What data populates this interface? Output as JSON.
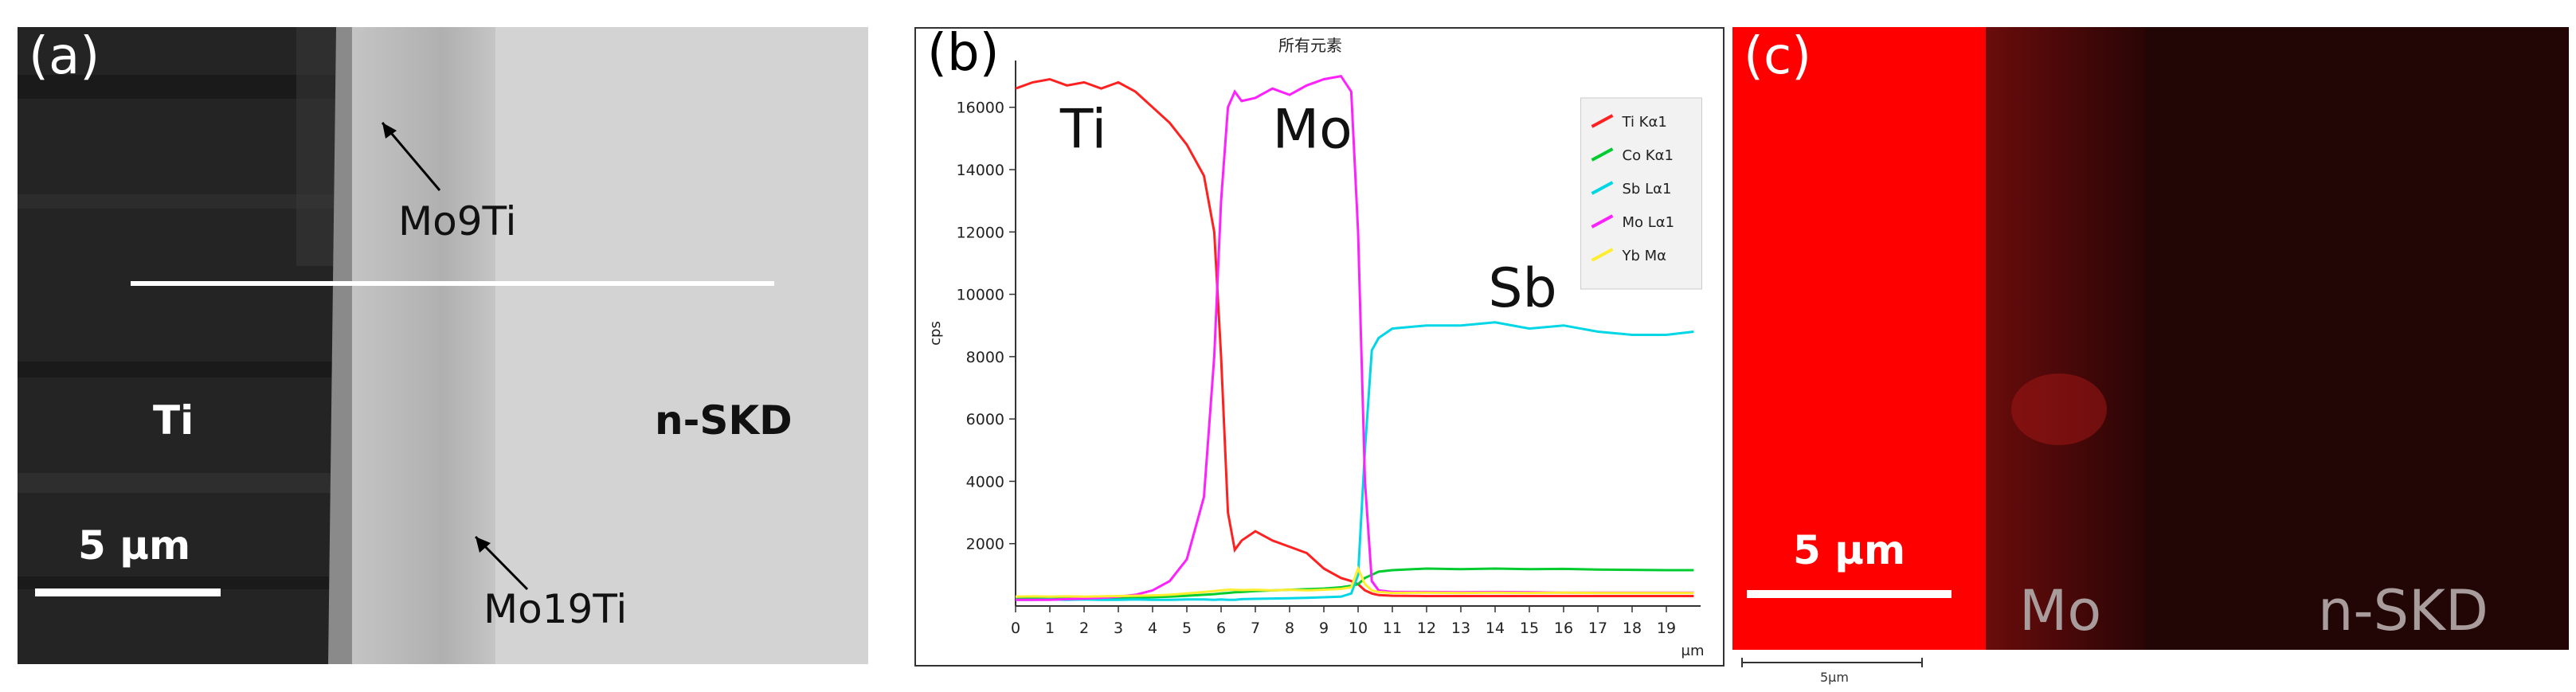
{
  "panel_a": {
    "label": "(a)",
    "annotation_top": "Mo9Ti",
    "annotation_bottom": "Mo19Ti",
    "region_left": "Ti",
    "region_right": "n-SKD",
    "scale_bar": "5 μm",
    "colors": {
      "ti_region": "#1e1e1e",
      "interface_region": "#bdbdbd",
      "skd_region": "#d4d4d4"
    }
  },
  "panel_b": {
    "label": "(b)",
    "chart_data": {
      "type": "line",
      "title": "所有元素",
      "xlabel": "μm",
      "ylabel": "cps",
      "xlim": [
        0,
        20
      ],
      "ylim": [
        0,
        17500
      ],
      "x_ticks": [
        "0",
        "1",
        "2",
        "3",
        "4",
        "5",
        "6",
        "7",
        "8",
        "9",
        "10",
        "11",
        "12",
        "13",
        "14",
        "15",
        "16",
        "17",
        "18",
        "19"
      ],
      "y_ticks": [
        "2000",
        "4000",
        "6000",
        "8000",
        "10000",
        "12000",
        "14000",
        "16000"
      ],
      "y_tick_values": [
        2000,
        4000,
        6000,
        8000,
        10000,
        12000,
        14000,
        16000
      ],
      "x": [
        0,
        0.5,
        1,
        1.5,
        2,
        2.5,
        3,
        3.5,
        4,
        4.5,
        5,
        5.5,
        5.8,
        6,
        6.2,
        6.4,
        6.6,
        7,
        7.5,
        8,
        8.5,
        9,
        9.5,
        9.8,
        10,
        10.2,
        10.4,
        10.6,
        11,
        12,
        13,
        14,
        15,
        16,
        17,
        18,
        19,
        19.8
      ],
      "series": [
        {
          "name": "Ti Kα1",
          "color": "#ff2020",
          "values": [
            16600,
            16800,
            16900,
            16700,
            16800,
            16600,
            16800,
            16500,
            16000,
            15500,
            14800,
            13800,
            12000,
            8000,
            3000,
            1800,
            2100,
            2400,
            2100,
            1900,
            1700,
            1200,
            900,
            800,
            700,
            500,
            400,
            350,
            330,
            320,
            320,
            320,
            320,
            320,
            320,
            320,
            320,
            320
          ]
        },
        {
          "name": "Co Kα1",
          "color": "#00cc30",
          "values": [
            250,
            260,
            250,
            260,
            250,
            260,
            270,
            270,
            280,
            300,
            330,
            360,
            380,
            400,
            420,
            440,
            450,
            480,
            500,
            520,
            540,
            560,
            600,
            650,
            700,
            900,
            1000,
            1100,
            1150,
            1200,
            1180,
            1200,
            1180,
            1190,
            1170,
            1160,
            1150,
            1150
          ]
        },
        {
          "name": "Sb Lα1",
          "color": "#00d6e6",
          "values": [
            200,
            200,
            210,
            200,
            210,
            200,
            200,
            210,
            200,
            200,
            210,
            210,
            200,
            210,
            200,
            200,
            220,
            230,
            240,
            250,
            260,
            280,
            300,
            400,
            1000,
            5000,
            8200,
            8600,
            8900,
            9000,
            9000,
            9100,
            8900,
            9000,
            8800,
            8700,
            8700,
            8800
          ]
        },
        {
          "name": "Mo Lα1",
          "color": "#ff20ff",
          "values": [
            200,
            200,
            200,
            220,
            240,
            260,
            300,
            360,
            500,
            800,
            1500,
            3500,
            8000,
            13000,
            16000,
            16500,
            16200,
            16300,
            16600,
            16400,
            16700,
            16900,
            17000,
            16500,
            12000,
            4000,
            800,
            500,
            450,
            450,
            440,
            450,
            440,
            430,
            430,
            430,
            430,
            430
          ]
        },
        {
          "name": "Yb Mα",
          "color": "#ffee30",
          "values": [
            300,
            310,
            300,
            310,
            300,
            310,
            320,
            330,
            340,
            360,
            400,
            450,
            480,
            500,
            520,
            520,
            510,
            520,
            500,
            520,
            500,
            520,
            550,
            600,
            1200,
            700,
            500,
            450,
            420,
            430,
            420,
            430,
            420,
            430,
            420,
            420,
            420,
            420
          ]
        }
      ],
      "annotations": [
        "Ti",
        "Mo",
        "Sb"
      ],
      "legend_position": "top-right"
    }
  },
  "panel_c": {
    "label": "(c)",
    "scale_bar": "5 μm",
    "region_mid": "Mo",
    "region_right": "n-SKD",
    "small_scale": "5μm",
    "colors": {
      "ti_region": "#ff0000",
      "mo_region": "#5a0a0a",
      "skd_region": "#200505"
    }
  }
}
